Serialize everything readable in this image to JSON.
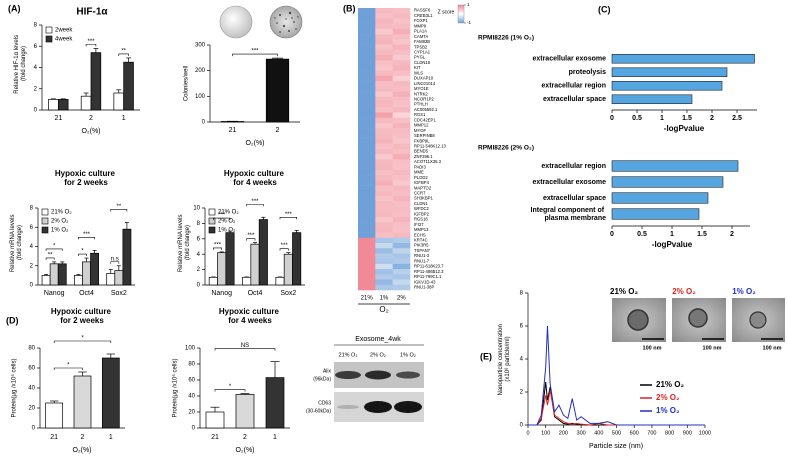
{
  "panel_labels": [
    "(A)",
    "(B)",
    "(C)",
    "(D)",
    "(E)"
  ],
  "chart_data": [
    {
      "type": "bar",
      "title": "HIF-1α",
      "ylabel": "Relative HIF-1α levels (fold change)",
      "xlabel": "O₂(%)",
      "categories": [
        "21",
        "2",
        "1"
      ],
      "series": [
        {
          "name": "2week",
          "color": "#ffffff",
          "values": [
            1,
            1.3,
            1.6
          ],
          "errors": [
            0.05,
            0.3,
            0.3
          ]
        },
        {
          "name": "4week",
          "color": "#333333",
          "values": [
            1,
            5.4,
            4.5
          ],
          "errors": [
            0.05,
            0.4,
            0.4
          ]
        }
      ],
      "ylim": [
        0,
        8
      ],
      "yticks": [
        0,
        2,
        4,
        6,
        8
      ],
      "annotations": [
        "***",
        "**"
      ]
    },
    {
      "type": "bar",
      "ylabel": "Colonies/well",
      "xlabel": "O₂(%)",
      "categories": [
        "21",
        "2"
      ],
      "values": [
        2,
        245
      ],
      "errors": [
        1,
        4
      ],
      "colors": [
        "#ffffff",
        "#111111"
      ],
      "ylim": [
        0,
        300
      ],
      "yticks": [
        0,
        100,
        200,
        300
      ],
      "annotations": [
        "***"
      ]
    },
    {
      "type": "bar",
      "title": "Hypoxic culture for 2 weeks",
      "ylabel": "Relative mRNA levels (fold change)",
      "categories": [
        "Nanog",
        "Oct4",
        "Sox2"
      ],
      "series": [
        {
          "name": "21% O₂",
          "color": "#ffffff",
          "values": [
            1,
            1,
            1.2
          ],
          "errors": [
            0.1,
            0.1,
            0.4
          ]
        },
        {
          "name": "2% O₂",
          "color": "#d0d0d0",
          "values": [
            2.2,
            2.4,
            1.5
          ],
          "errors": [
            0.2,
            0.4,
            0.5
          ]
        },
        {
          "name": "1% O₂",
          "color": "#333333",
          "values": [
            2.2,
            3.3,
            5.8
          ],
          "errors": [
            0.2,
            0.3,
            0.7
          ]
        }
      ],
      "ylim": [
        0,
        8
      ],
      "yticks": [
        0,
        2,
        4,
        6,
        8
      ],
      "annotations": [
        "**",
        "*",
        "*",
        "***",
        "n.s",
        "**"
      ]
    },
    {
      "type": "bar",
      "title": "Hypoxic culture for 4 weeks",
      "ylabel": "Relative mRNA levels (fold change)",
      "categories": [
        "Nanog",
        "Oct4",
        "Sox2"
      ],
      "series": [
        {
          "name": "21% O₂",
          "color": "#ffffff",
          "values": [
            1,
            1,
            1
          ],
          "errors": [
            0.05,
            0.05,
            0.05
          ]
        },
        {
          "name": "2% O₂",
          "color": "#d0d0d0",
          "values": [
            4.2,
            5.3,
            4
          ],
          "errors": [
            0.1,
            0.2,
            0.2
          ]
        },
        {
          "name": "1% O₂",
          "color": "#333333",
          "values": [
            6.8,
            8.5,
            6.8
          ],
          "errors": [
            0.2,
            0.3,
            0.3
          ]
        }
      ],
      "ylim": [
        0,
        10
      ],
      "yticks": [
        0,
        2,
        4,
        6,
        8,
        10
      ],
      "annotations": [
        "***",
        "***",
        "***",
        "***",
        "***",
        "***"
      ]
    },
    {
      "type": "bar",
      "title": "Hypoxic culture for 2 weeks",
      "ylabel": "Protein(μg /x10⁶ cells)",
      "xlabel": "O₂(%)",
      "categories": [
        "21",
        "2",
        "1"
      ],
      "values": [
        25,
        52,
        70
      ],
      "errors": [
        2,
        4,
        4
      ],
      "colors": [
        "#ffffff",
        "#d9d9d9",
        "#333333"
      ],
      "ylim": [
        0,
        80
      ],
      "yticks": [
        0,
        20,
        40,
        60,
        80
      ],
      "annotations": [
        "*",
        "*"
      ]
    },
    {
      "type": "bar",
      "title": "Hypoxic culture for 4 weeks",
      "ylabel": "Protein(μg /x10⁶ cells)",
      "xlabel": "O₂(%)",
      "categories": [
        "21",
        "2",
        "1"
      ],
      "values": [
        20,
        42,
        63
      ],
      "errors": [
        6,
        1,
        20
      ],
      "colors": [
        "#ffffff",
        "#d9d9d9",
        "#333333"
      ],
      "ylim": [
        0,
        100
      ],
      "yticks": [
        0,
        20,
        40,
        60,
        80,
        100
      ],
      "annotations": [
        "*",
        "NS"
      ]
    },
    {
      "type": "heatmap",
      "xlabel": "O₂",
      "columns": [
        "21%",
        "1%",
        "2%"
      ],
      "colorbar_title": "Z score",
      "colorbar_ticks": [
        1,
        -1
      ],
      "genes": [
        "RASSF6",
        "CREB3L1",
        "FOXP1",
        "MMP9",
        "PLA1A",
        "CAMTA",
        "FAM83B",
        "TPSB2",
        "CYP1A1",
        "PYGL",
        "CLDN16",
        "KIT",
        "WLS",
        "DUXAP10",
        "LINC01014",
        "MYO1E",
        "NTRK2",
        "NCOR1P2",
        "PTHLH",
        "AC005592.1",
        "RGS1",
        "CDC42EP1",
        "MMP12",
        "MYOF",
        "SERPINB8",
        "FKBP9L",
        "RP11-548K12.13",
        "BEND5",
        "ZNF396.1",
        "ACOT11X35.3",
        "PADI3",
        "MME",
        "PLOD2",
        "IGFBP4",
        "MAPTO2",
        "CCR7",
        "SH3KBP1",
        "CLDN1",
        "WFDC2",
        "IGFBP2",
        "RGS16",
        "IFI27",
        "MMP13",
        "ECHS",
        "KRT4C",
        "PIK3R5",
        "TSPAN7",
        "RNU1-3",
        "RNU1-7",
        "RP11-618K23.7",
        "RP11-486B12.3",
        "RP11-799C1.1",
        "IGKV1D-43",
        "RNU1-38P"
      ],
      "values": [
        [
          -1.15,
          0.6,
          0.55
        ],
        [
          -1.15,
          0.55,
          0.6
        ],
        [
          -1.15,
          0.62,
          0.53
        ],
        [
          -1.15,
          0.58,
          0.57
        ],
        [
          -1.15,
          0.45,
          0.7
        ],
        [
          -1.15,
          0.6,
          0.55
        ],
        [
          -1.15,
          0.65,
          0.5
        ],
        [
          -1.15,
          0.52,
          0.63
        ],
        [
          -1.15,
          0.6,
          0.55
        ],
        [
          -1.15,
          0.7,
          0.45
        ],
        [
          -1.15,
          0.55,
          0.6
        ],
        [
          -1.15,
          0.5,
          0.65
        ],
        [
          -1.15,
          0.6,
          0.55
        ],
        [
          -1.15,
          0.75,
          0.4
        ],
        [
          -1.15,
          0.55,
          0.6
        ],
        [
          -1.15,
          0.6,
          0.55
        ],
        [
          -1.15,
          0.48,
          0.67
        ],
        [
          -1.15,
          0.6,
          0.55
        ],
        [
          -1.15,
          0.62,
          0.53
        ],
        [
          -1.15,
          0.55,
          0.6
        ],
        [
          -1.15,
          0.8,
          0.35
        ],
        [
          -1.15,
          0.6,
          0.55
        ],
        [
          -1.15,
          0.5,
          0.65
        ],
        [
          -1.15,
          0.58,
          0.57
        ],
        [
          -1.15,
          0.6,
          0.55
        ],
        [
          -1.15,
          0.65,
          0.5
        ],
        [
          -1.15,
          0.55,
          0.6
        ],
        [
          -1.15,
          0.6,
          0.55
        ],
        [
          -1.15,
          0.45,
          0.7
        ],
        [
          -1.15,
          0.6,
          0.55
        ],
        [
          -1.15,
          0.62,
          0.53
        ],
        [
          -1.15,
          0.55,
          0.6
        ],
        [
          -1.15,
          0.6,
          0.55
        ],
        [
          -1.15,
          0.68,
          0.47
        ],
        [
          -1.15,
          0.55,
          0.6
        ],
        [
          -1.15,
          0.6,
          0.55
        ],
        [
          -1.15,
          0.52,
          0.63
        ],
        [
          -1.15,
          0.6,
          0.55
        ],
        [
          -1.15,
          0.58,
          0.57
        ],
        [
          -1.15,
          0.6,
          0.55
        ],
        [
          -1.15,
          0.5,
          0.65
        ],
        [
          -1.15,
          0.6,
          0.55
        ],
        [
          -1.15,
          0.62,
          0.53
        ],
        [
          -1.15,
          0.55,
          0.6
        ],
        [
          1.15,
          -0.6,
          -0.55
        ],
        [
          1.15,
          -0.4,
          -0.75
        ],
        [
          1.15,
          -0.7,
          -0.45
        ],
        [
          1.15,
          -0.55,
          -0.6
        ],
        [
          1.15,
          -0.6,
          -0.55
        ],
        [
          1.15,
          -0.35,
          -0.8
        ],
        [
          1.15,
          -0.65,
          -0.5
        ],
        [
          1.15,
          -0.55,
          -0.6
        ],
        [
          1.15,
          -0.75,
          -0.4
        ],
        [
          1.15,
          -0.6,
          -0.55
        ]
      ]
    },
    {
      "type": "hbar",
      "title": "RPMI8226 (1% O₂)",
      "xlabel": "-logPvalue",
      "color": "#55a6e0",
      "categories": [
        "extracellular exosome",
        "proteolysis",
        "extracellular region",
        "extracellular space"
      ],
      "values": [
        2.85,
        2.3,
        2.2,
        1.6
      ],
      "xlim": [
        0,
        2.9
      ],
      "xticks": [
        0,
        0.5,
        1,
        1.5,
        2,
        2.5
      ]
    },
    {
      "type": "hbar",
      "title": "RPMI8226 (2% O₂)",
      "xlabel": "-logPvalue",
      "color": "#55a6e0",
      "categories": [
        "extracellular region",
        "extracellular exosome",
        "extracellular space",
        "Integral component of plasma membrane"
      ],
      "values": [
        2.1,
        1.85,
        1.6,
        1.45
      ],
      "xlim": [
        0,
        2.3
      ],
      "xticks": [
        0,
        0.5,
        1,
        1.5,
        2
      ]
    },
    {
      "type": "line",
      "xlabel": "Particle size (nm)",
      "ylabel": "Nanoparticle concentration (x10⁸ particle/ml)",
      "x": [
        0,
        50,
        75,
        100,
        110,
        125,
        150,
        175,
        200,
        225,
        250,
        275,
        300,
        350,
        400,
        450,
        500,
        600,
        700,
        800,
        900,
        1000
      ],
      "series": [
        {
          "name": "21% O₂",
          "color": "#000000",
          "values": [
            0,
            0,
            0.3,
            2.6,
            1.5,
            2.3,
            0.5,
            0.3,
            0.1,
            0.05,
            0.1,
            0.05,
            0.02,
            0,
            0,
            0,
            0,
            0,
            0,
            0,
            0,
            0
          ]
        },
        {
          "name": "2% O₂",
          "color": "#e02020",
          "values": [
            0,
            0,
            0.4,
            1.8,
            1.2,
            2.1,
            0.6,
            0.4,
            0.2,
            0.1,
            0.05,
            0.1,
            0.05,
            0,
            0.1,
            0,
            0,
            0,
            0,
            0,
            0,
            0
          ]
        },
        {
          "name": "1% O₂",
          "color": "#2030c0",
          "values": [
            0,
            0,
            0.6,
            3.5,
            6,
            2.5,
            0.8,
            1.2,
            0.6,
            0.4,
            1.6,
            0.3,
            0.5,
            0.1,
            0.1,
            0.2,
            0,
            0,
            0,
            0,
            0,
            0
          ]
        }
      ],
      "xlim": [
        0,
        1000
      ],
      "xticks": [
        0,
        100,
        200,
        300,
        400,
        500,
        600,
        700,
        800,
        900,
        1000
      ],
      "ylim": [
        0,
        8
      ],
      "yticks": [
        0,
        2,
        4,
        6,
        8
      ]
    }
  ],
  "western_blot": {
    "title": "Exosome_4wk",
    "lanes": [
      "21% O₂",
      "2% O₂",
      "1% O₂"
    ],
    "rows": [
      {
        "name": "Alix",
        "size": "(96kDa)"
      },
      {
        "name": "CD63",
        "size": "(30-60kDa)"
      }
    ]
  },
  "tem_images": {
    "labels": [
      "21% O₂",
      "2% O₂",
      "1% O₂"
    ],
    "label_colors": [
      "#000000",
      "#e02020",
      "#2030c0"
    ],
    "scale_labels": [
      "100 nm",
      "100 nm",
      "100 nm"
    ]
  }
}
